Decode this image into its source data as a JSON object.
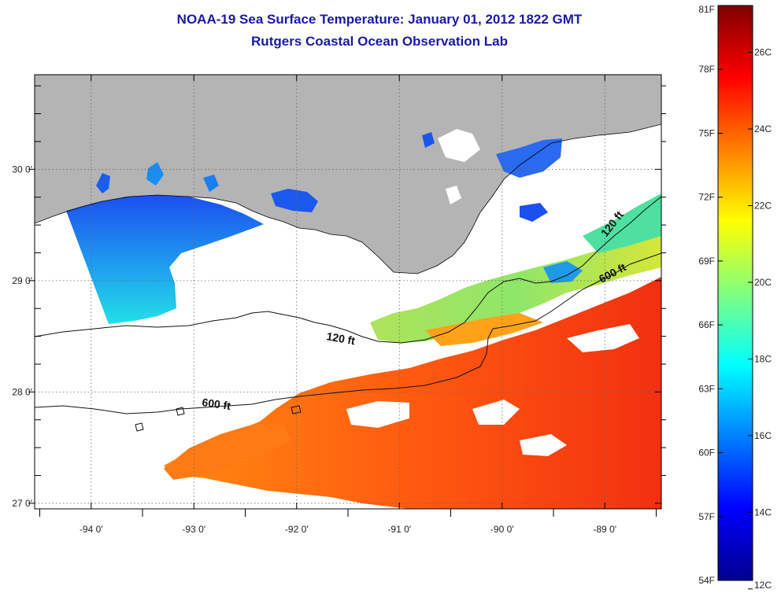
{
  "title": {
    "line1": "NOAA-19 Sea Surface Temperature:  January 01, 2012 1822 GMT",
    "line2": "Rutgers Coastal Ocean Observation Lab"
  },
  "map": {
    "lon_range": [
      -94.55,
      -88.45
    ],
    "lat_range": [
      26.95,
      30.85
    ],
    "lon_ticks": [
      -94,
      -93,
      -92,
      -91,
      -90,
      -89
    ],
    "lon_labels": [
      "-94 0'",
      "-93 0'",
      "-92 0'",
      "-91 0'",
      "-90 0'",
      "-89 0'"
    ],
    "lat_ticks": [
      30,
      29,
      28,
      27
    ],
    "lat_labels": [
      "30 0'",
      "29 0'",
      "28 0'",
      "27 0'"
    ],
    "grid": true,
    "land_color": "#b4b4b4",
    "contours": [
      {
        "label": "120 ft"
      },
      {
        "label": "600 ft"
      },
      {
        "label": "120 ft"
      },
      {
        "label": "600 ft"
      }
    ]
  },
  "colorbar": {
    "colors": [
      "#00008f",
      "#0000ff",
      "#0080ff",
      "#00ffff",
      "#80ff80",
      "#ffff00",
      "#ff8000",
      "#ff0000",
      "#800000"
    ],
    "f_labels": [
      "81F",
      "78F",
      "75F",
      "72F",
      "69F",
      "66F",
      "63F",
      "60F",
      "57F",
      "54F"
    ],
    "c_labels": [
      "26C",
      "24C",
      "22C",
      "20C",
      "18C",
      "16C",
      "14C",
      "12C"
    ]
  }
}
